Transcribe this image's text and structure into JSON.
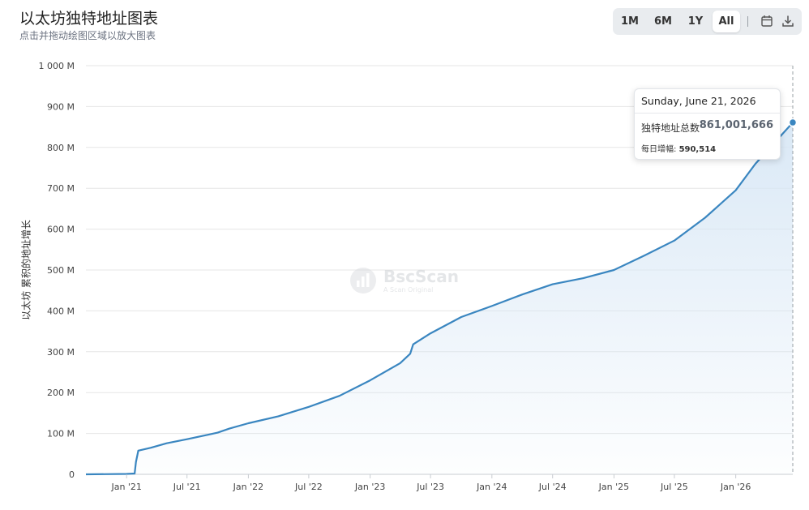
{
  "header": {
    "title": "以太坊独特地址图表",
    "subtitle": "点击并拖动绘图区域以放大图表"
  },
  "range_buttons": [
    {
      "label": "1M",
      "active": false
    },
    {
      "label": "6M",
      "active": false
    },
    {
      "label": "1Y",
      "active": false
    },
    {
      "label": "All",
      "active": true
    }
  ],
  "separator": "|",
  "icons": {
    "calendar": "calendar-icon",
    "download": "download-icon"
  },
  "watermark": {
    "brand": "BscScan",
    "tagline": "A Scan Original"
  },
  "tooltip": {
    "date": "Sunday, June 21, 2026",
    "total_label": "独特地址总数",
    "total_value": "861,001,666",
    "daily_label": "每日增幅:",
    "daily_value": "590,514"
  },
  "colors": {
    "line": "#3a86c0",
    "area_top": "#d6e6f5",
    "grid": "#e6e6e6"
  },
  "chart_data": {
    "type": "area",
    "title": "以太坊独特地址图表",
    "ylabel": "以太坊 累积的地址增长",
    "xlabel": "",
    "x_range": [
      "2020-09-01",
      "2026-06-21"
    ],
    "ylim": [
      0,
      1000000000
    ],
    "yticks": [
      "0",
      "100 M",
      "200 M",
      "300 M",
      "400 M",
      "500 M",
      "600 M",
      "700 M",
      "800 M",
      "900 M",
      "1 000 M"
    ],
    "xticks": [
      {
        "label": "Jan '21",
        "date": "2021-01-01"
      },
      {
        "label": "Jul '21",
        "date": "2021-07-01"
      },
      {
        "label": "Jan '22",
        "date": "2022-01-01"
      },
      {
        "label": "Jul '22",
        "date": "2022-07-01"
      },
      {
        "label": "Jan '23",
        "date": "2023-01-01"
      },
      {
        "label": "Jul '23",
        "date": "2023-07-01"
      },
      {
        "label": "Jan '24",
        "date": "2024-01-01"
      },
      {
        "label": "Jul '24",
        "date": "2024-07-01"
      },
      {
        "label": "Jan '25",
        "date": "2025-01-01"
      },
      {
        "label": "Jul '25",
        "date": "2025-07-01"
      },
      {
        "label": "Jan '26",
        "date": "2026-01-01"
      }
    ],
    "grid": true,
    "legend": "none",
    "series": [
      {
        "x": [
          "2020-09-01",
          "2021-01-01",
          "2021-01-25",
          "2021-01-29",
          "2021-02-05",
          "2021-03-15",
          "2021-05-01",
          "2021-07-01",
          "2021-10-01",
          "2021-11-05",
          "2022-01-01",
          "2022-04-01",
          "2022-07-01",
          "2022-10-01",
          "2023-01-01",
          "2023-04-01",
          "2023-05-01",
          "2023-05-10",
          "2023-07-01",
          "2023-10-01",
          "2024-01-01",
          "2024-04-01",
          "2024-07-01",
          "2024-10-01",
          "2025-01-01",
          "2025-04-01",
          "2025-07-01",
          "2025-10-01",
          "2026-01-01",
          "2026-03-01",
          "2026-06-21"
        ],
        "y": [
          0,
          1000000,
          2000000,
          30000000,
          58000000,
          65000000,
          76000000,
          86000000,
          102000000,
          112000000,
          125000000,
          142000000,
          165000000,
          192000000,
          230000000,
          272000000,
          295000000,
          318000000,
          345000000,
          385000000,
          412000000,
          440000000,
          465000000,
          480000000,
          500000000,
          535000000,
          572000000,
          628000000,
          695000000,
          760000000,
          861001666
        ]
      }
    ],
    "highlight": {
      "x": "2026-06-21",
      "y": 861001666
    }
  }
}
